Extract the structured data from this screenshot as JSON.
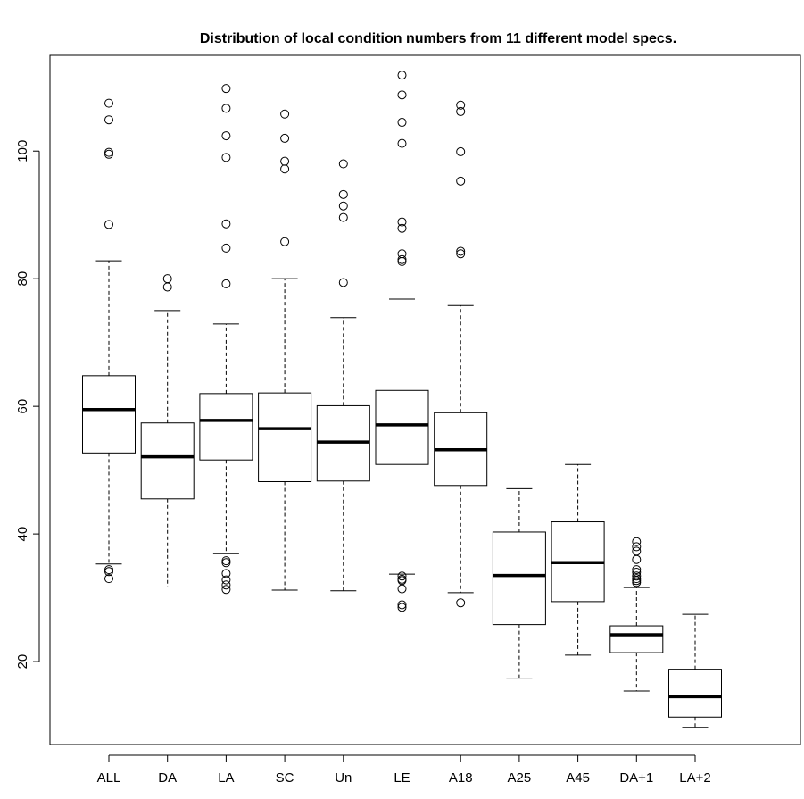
{
  "chart_data": {
    "type": "boxplot",
    "title": "Distribution of local condition numbers from 11 different model specs.",
    "xlabel": "",
    "ylabel": "",
    "ylim": [
      7,
      115
    ],
    "yticks": [
      20,
      40,
      60,
      80,
      100
    ],
    "ytick_labels": [
      "20",
      "40",
      "60",
      "80",
      "100"
    ],
    "grid": false,
    "legend": "none",
    "categories": [
      "ALL",
      "DA",
      "LA",
      "SC",
      "Un",
      "LE",
      "A18",
      "A25",
      "A45",
      "DA+1",
      "LA+2"
    ],
    "boxes": [
      {
        "name": "ALL",
        "whisker_low": 35.3,
        "q1": 52.7,
        "median": 59.5,
        "q3": 64.8,
        "whisker_high": 82.8,
        "outliers": [
          34.4,
          34.1,
          33.0,
          88.5,
          99.5,
          99.8,
          104.9,
          107.5
        ]
      },
      {
        "name": "DA",
        "whisker_low": 31.7,
        "q1": 45.5,
        "median": 52.1,
        "q3": 57.4,
        "whisker_high": 75.0,
        "outliers": [
          78.7,
          80.0
        ]
      },
      {
        "name": "LA",
        "whisker_low": 36.9,
        "q1": 51.6,
        "median": 57.8,
        "q3": 62.0,
        "whisker_high": 72.9,
        "outliers": [
          35.8,
          35.5,
          33.8,
          32.8,
          32.0,
          31.3,
          79.2,
          84.8,
          88.6,
          99.0,
          102.4,
          106.7,
          109.8
        ]
      },
      {
        "name": "SC",
        "whisker_low": 31.2,
        "q1": 48.2,
        "median": 56.5,
        "q3": 62.1,
        "whisker_high": 80.0,
        "outliers": [
          85.8,
          97.2,
          98.4,
          102.0,
          105.8
        ]
      },
      {
        "name": "Un",
        "whisker_low": 31.1,
        "q1": 48.3,
        "median": 54.4,
        "q3": 60.1,
        "whisker_high": 73.9,
        "outliers": [
          79.4,
          89.6,
          91.4,
          93.2,
          98.0
        ]
      },
      {
        "name": "LE",
        "whisker_low": 33.7,
        "q1": 50.9,
        "median": 57.1,
        "q3": 62.5,
        "whisker_high": 76.8,
        "outliers": [
          33.4,
          32.9,
          32.7,
          31.4,
          28.9,
          28.5,
          82.7,
          83.0,
          83.9,
          87.9,
          88.9,
          101.2,
          104.5,
          108.8,
          111.9
        ]
      },
      {
        "name": "A18",
        "whisker_low": 30.8,
        "q1": 47.6,
        "median": 53.2,
        "q3": 59.0,
        "whisker_high": 75.8,
        "outliers": [
          29.2,
          83.9,
          84.3,
          95.3,
          99.9,
          106.2,
          107.2
        ]
      },
      {
        "name": "A25",
        "whisker_low": 17.4,
        "q1": 25.8,
        "median": 33.5,
        "q3": 40.3,
        "whisker_high": 47.1,
        "outliers": []
      },
      {
        "name": "A45",
        "whisker_low": 21.0,
        "q1": 29.4,
        "median": 35.5,
        "q3": 41.9,
        "whisker_high": 50.9,
        "outliers": []
      },
      {
        "name": "DA+1",
        "whisker_low": 15.4,
        "q1": 21.4,
        "median": 24.2,
        "q3": 25.6,
        "whisker_high": 31.6,
        "outliers": [
          32.4,
          32.7,
          33.0,
          33.4,
          34.0,
          34.4,
          36.0,
          37.3,
          38.0,
          38.8
        ]
      },
      {
        "name": "LA+2",
        "whisker_low": 9.7,
        "q1": 11.3,
        "median": 14.5,
        "q3": 18.8,
        "whisker_high": 27.4,
        "outliers": []
      }
    ]
  }
}
